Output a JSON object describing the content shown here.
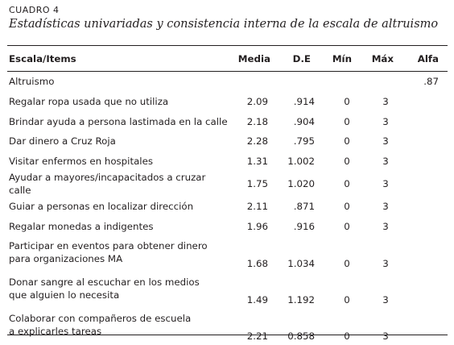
{
  "table_label": "CUADRO 4",
  "table_title": "Estadísticas univariadas y consistencia interna de la escala de altruismo",
  "headers": [
    "Escala/Items",
    "Media",
    "D.E",
    "Mín",
    "Máx",
    "Alfa"
  ],
  "group": {
    "name": "Altruismo",
    "alfa": ".87"
  },
  "rows": [
    {
      "item": [
        "Regalar ropa usada que no utiliza"
      ],
      "media": "2.09",
      "de": ".914",
      "min": "0",
      "max": "3"
    },
    {
      "item": [
        "Brindar ayuda a persona lastimada en la calle"
      ],
      "media": "2.18",
      "de": ".904",
      "min": "0",
      "max": "3"
    },
    {
      "item": [
        "Dar dinero a Cruz Roja"
      ],
      "media": "2.28",
      "de": ".795",
      "min": "0",
      "max": "3"
    },
    {
      "item": [
        "Visitar enfermos en hospitales"
      ],
      "media": "1.31",
      "de": "1.002",
      "min": "0",
      "max": "3"
    },
    {
      "item": [
        "Ayudar a mayores/incapacitados a cruzar calle"
      ],
      "media": "1.75",
      "de": "1.020",
      "min": "0",
      "max": "3"
    },
    {
      "item": [
        "Guiar a personas en localizar dirección"
      ],
      "media": "2.11",
      "de": ".871",
      "min": "0",
      "max": "3"
    },
    {
      "item": [
        "Regalar monedas a indigentes"
      ],
      "media": "1.96",
      "de": ".916",
      "min": "0",
      "max": "3"
    },
    {
      "item": [
        "Participar en eventos para obtener dinero",
        "para organizaciones MA"
      ],
      "media": "1.68",
      "de": "1.034",
      "min": "0",
      "max": "3"
    },
    {
      "item": [
        "Donar sangre al escuchar en los medios",
        "que alguien lo necesita"
      ],
      "media": "1.49",
      "de": "1.192",
      "min": "0",
      "max": "3"
    },
    {
      "item": [
        "Colaborar con compañeros de escuela",
        "a explicarles tareas"
      ],
      "media": "2.21",
      "de": "0.858",
      "min": "0",
      "max": "3"
    }
  ]
}
